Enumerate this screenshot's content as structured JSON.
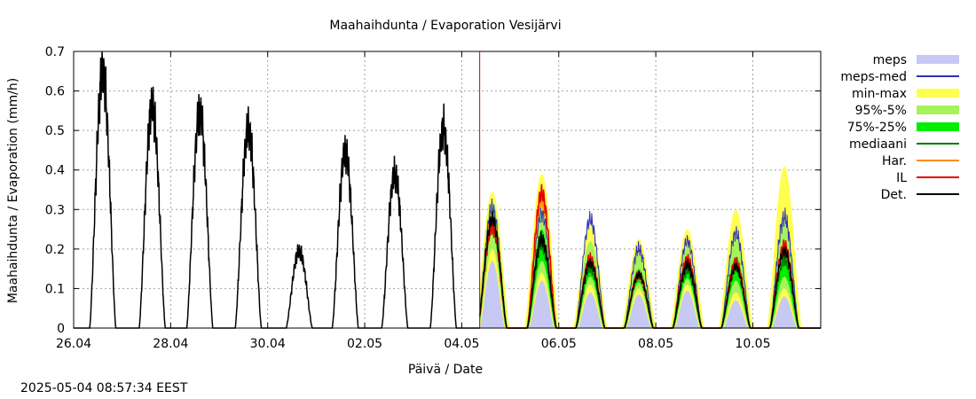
{
  "chart_data": {
    "type": "line",
    "title": "Maahaihdunta / Evaporation  Vesijärvi",
    "xlabel": "Päivä / Date",
    "ylabel": "Maahaihdunta / Evaporation (mm/h)",
    "xlim": [
      0,
      15.4
    ],
    "ylim": [
      0,
      0.7
    ],
    "x_unit": "days since 26.04 00:00",
    "x_ticks": [
      {
        "value": 0,
        "label": "26.04"
      },
      {
        "value": 2,
        "label": "28.04"
      },
      {
        "value": 4,
        "label": "30.04"
      },
      {
        "value": 6,
        "label": "02.05"
      },
      {
        "value": 8,
        "label": "04.05"
      },
      {
        "value": 10,
        "label": "06.05"
      },
      {
        "value": 12,
        "label": "08.05"
      },
      {
        "value": 14,
        "label": "10.05"
      }
    ],
    "y_ticks": [
      {
        "value": 0,
        "label": "0"
      },
      {
        "value": 0.1,
        "label": "0.1"
      },
      {
        "value": 0.2,
        "label": "0.2"
      },
      {
        "value": 0.3,
        "label": "0.3"
      },
      {
        "value": 0.4,
        "label": "0.4"
      },
      {
        "value": 0.5,
        "label": "0.5"
      },
      {
        "value": 0.6,
        "label": "0.6"
      },
      {
        "value": 0.7,
        "label": "0.7"
      }
    ],
    "grid": true,
    "legend_position": "outside-right",
    "now_marker": 8.37,
    "observed_peaks": [
      {
        "day": 0.6,
        "peak": 0.645
      },
      {
        "day": 1.62,
        "peak": 0.56
      },
      {
        "day": 2.6,
        "peak": 0.545
      },
      {
        "day": 3.6,
        "peak": 0.505
      },
      {
        "day": 4.65,
        "peak": 0.195
      },
      {
        "day": 5.6,
        "peak": 0.445
      },
      {
        "day": 6.62,
        "peak": 0.39
      },
      {
        "day": 7.62,
        "peak": 0.505
      }
    ],
    "forecast_days": [
      {
        "day": 8.63,
        "median": 0.27,
        "p75": 0.3,
        "p25": 0.24,
        "p95": 0.32,
        "p5": 0.2,
        "max": 0.345,
        "min": 0.17,
        "meps": 0.3,
        "il": 0.255,
        "har": 0.27,
        "det": 0.275
      },
      {
        "day": 9.65,
        "median": 0.21,
        "p75": 0.25,
        "p25": 0.17,
        "p95": 0.3,
        "p5": 0.14,
        "max": 0.39,
        "min": 0.12,
        "meps": 0.29,
        "il": 0.34,
        "har": 0.33,
        "det": 0.225
      },
      {
        "day": 10.65,
        "median": 0.15,
        "p75": 0.17,
        "p25": 0.13,
        "p95": 0.22,
        "p5": 0.11,
        "max": 0.26,
        "min": 0.09,
        "meps": 0.275,
        "il": 0.175,
        "har": 0.17,
        "det": 0.165
      },
      {
        "day": 11.65,
        "median": 0.13,
        "p75": 0.15,
        "p25": 0.115,
        "p95": 0.19,
        "p5": 0.1,
        "max": 0.225,
        "min": 0.085,
        "meps": 0.2,
        "il": 0.135,
        "har": 0.135,
        "det": 0.135
      },
      {
        "day": 12.65,
        "median": 0.145,
        "p75": 0.17,
        "p25": 0.125,
        "p95": 0.21,
        "p5": 0.11,
        "max": 0.25,
        "min": 0.095,
        "meps": 0.22,
        "il": 0.175,
        "har": 0.17,
        "det": 0.16
      },
      {
        "day": 13.65,
        "median": 0.15,
        "p75": 0.18,
        "p25": 0.12,
        "p95": 0.24,
        "p5": 0.09,
        "max": 0.3,
        "min": 0.07,
        "meps": 0.24,
        "il": 0.165,
        "har": 0.16,
        "det": 0.155
      },
      {
        "day": 14.65,
        "median": 0.17,
        "p75": 0.2,
        "p25": 0.13,
        "p95": 0.28,
        "p5": 0.1,
        "max": 0.41,
        "min": 0.08,
        "meps": 0.28,
        "il": 0.21,
        "har": 0.2,
        "det": 0.195
      }
    ],
    "legend": [
      {
        "label": "meps",
        "kind": "box",
        "color": "#c8c8f5"
      },
      {
        "label": "meps-med",
        "kind": "line",
        "color": "#3232b4"
      },
      {
        "label": "min-max",
        "kind": "box",
        "color": "#ffff50"
      },
      {
        "label": "95%-5%",
        "kind": "box",
        "color": "#a6f25a"
      },
      {
        "label": "75%-25%",
        "kind": "box",
        "color": "#00ee00"
      },
      {
        "label": "mediaani",
        "kind": "line",
        "color": "#007a00"
      },
      {
        "label": "Har.",
        "kind": "line",
        "color": "#ff8c00"
      },
      {
        "label": "IL",
        "kind": "line",
        "color": "#e60000"
      },
      {
        "label": "Det.",
        "kind": "line",
        "color": "#000000"
      }
    ]
  },
  "footer": {
    "timestamp": "2025-05-04 08:57:34 EEST"
  }
}
